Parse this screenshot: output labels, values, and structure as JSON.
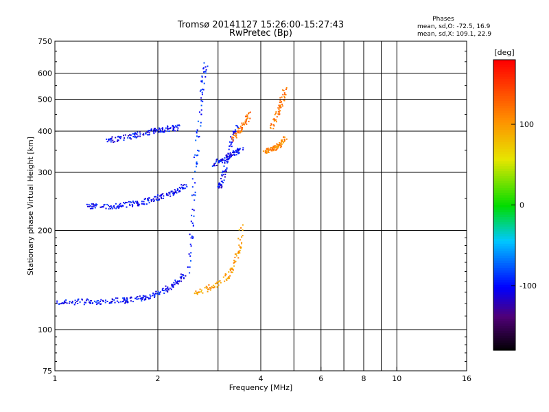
{
  "chart_data": {
    "type": "scatter",
    "title": "Tromsø 20141127 15:26:00-15:27:43",
    "subtitle": "RwPretec (Bp)",
    "xlabel": "Frequency [MHz]",
    "ylabel": "Stationary phase Virtual Height [km]",
    "x_scale": "log",
    "y_scale": "log",
    "xlim": [
      1,
      16
    ],
    "ylim": [
      75,
      750
    ],
    "x_ticks": [
      1,
      2,
      4,
      6,
      8,
      10,
      16
    ],
    "x_tick_labels": [
      "1",
      "2",
      "4",
      "6",
      "8",
      "10",
      "16"
    ],
    "y_ticks": [
      75,
      100,
      200,
      300,
      400,
      500,
      600,
      750
    ],
    "y_tick_labels": [
      "75",
      "100",
      "200",
      "300",
      "400",
      "500",
      "600",
      "750"
    ],
    "grid": true,
    "annotation": {
      "heading": "Phases",
      "line1": "mean, sd,O: -72.5, 16.9",
      "line2": "mean, sd,X: 109.1, 22.9"
    },
    "colorbar": {
      "label": "[deg]",
      "min": -180,
      "max": 180,
      "ticks": [
        100,
        0,
        -100
      ],
      "tick_labels": [
        "100",
        "0",
        "-100"
      ],
      "colormap": "rainbow"
    },
    "series": [
      {
        "x": [
          1.0,
          1.1,
          1.2,
          1.3,
          1.4,
          1.5,
          1.6,
          1.7,
          1.8,
          1.9,
          2.0,
          2.1,
          2.2,
          2.3,
          2.4
        ],
        "y": [
          122,
          122,
          122,
          122,
          122,
          123,
          123,
          124,
          125,
          127,
          130,
          133,
          137,
          142,
          148
        ],
        "phase": -100
      },
      {
        "x": [
          1.25,
          1.3,
          1.4,
          1.5,
          1.6,
          1.7,
          1.8,
          1.9,
          2.0,
          2.1,
          2.2,
          2.3,
          2.4
        ],
        "y": [
          237,
          238,
          238,
          238,
          240,
          242,
          245,
          248,
          252,
          256,
          262,
          268,
          275
        ],
        "phase": -100
      },
      {
        "x": [
          1.4,
          1.5,
          1.6,
          1.7,
          1.8,
          1.9,
          2.0,
          2.1,
          2.2,
          2.3
        ],
        "y": [
          376,
          380,
          385,
          390,
          395,
          400,
          404,
          408,
          410,
          412
        ],
        "phase": -100
      },
      {
        "x": [
          2.45,
          2.5,
          2.55,
          2.6,
          2.65,
          2.7,
          2.75
        ],
        "y": [
          140,
          200,
          280,
          380,
          480,
          570,
          640
        ],
        "phase": -90
      },
      {
        "x": [
          2.9,
          3.0,
          3.1,
          3.2,
          3.3,
          3.4,
          3.5
        ],
        "y": [
          320,
          326,
          332,
          338,
          344,
          350,
          356
        ],
        "phase": -100
      },
      {
        "x": [
          3.0,
          3.05,
          3.1,
          3.2,
          3.3,
          3.4
        ],
        "y": [
          270,
          280,
          300,
          340,
          390,
          420
        ],
        "phase": -100
      },
      {
        "x": [
          2.55,
          2.7,
          2.9,
          3.1,
          3.25,
          3.35,
          3.45,
          3.5
        ],
        "y": [
          130,
          132,
          136,
          142,
          150,
          160,
          180,
          210
        ],
        "phase": 100
      },
      {
        "x": [
          3.3,
          3.4,
          3.5,
          3.6,
          3.7
        ],
        "y": [
          380,
          395,
          410,
          430,
          460
        ],
        "phase": 120
      },
      {
        "x": [
          4.1,
          4.2,
          4.3,
          4.4,
          4.5,
          4.6,
          4.7
        ],
        "y": [
          350,
          352,
          355,
          358,
          362,
          370,
          385
        ],
        "phase": 110
      },
      {
        "x": [
          4.3,
          4.4,
          4.5,
          4.6,
          4.7
        ],
        "y": [
          410,
          440,
          470,
          500,
          540
        ],
        "phase": 120
      }
    ]
  }
}
